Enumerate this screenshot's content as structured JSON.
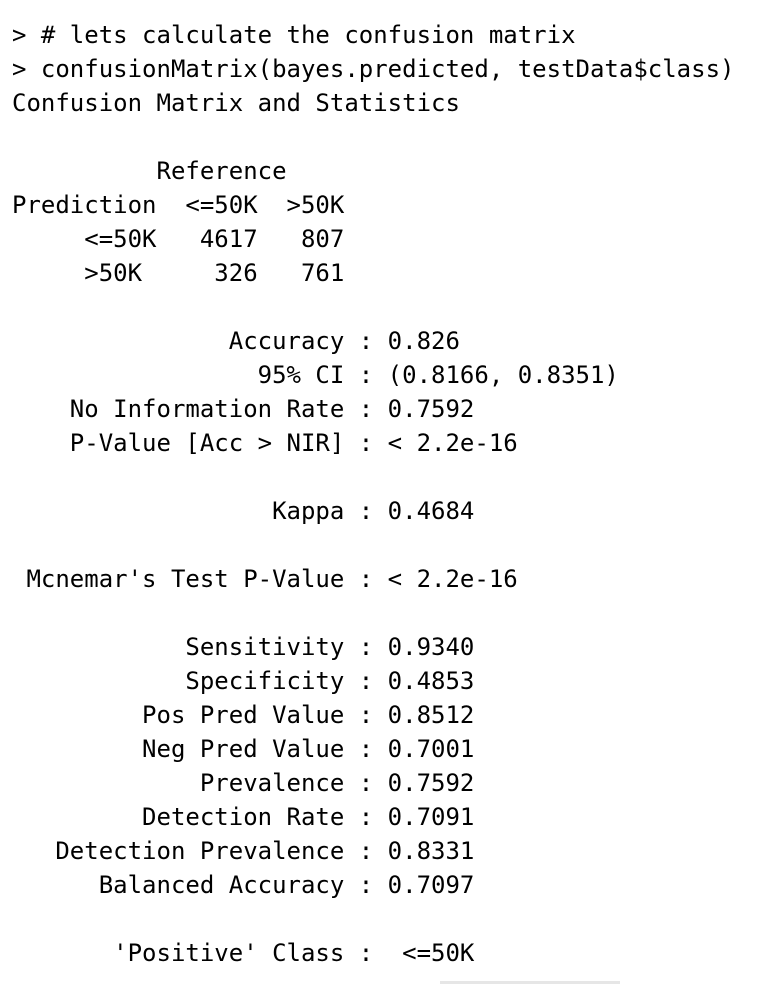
{
  "console": {
    "command_comment": "> # lets calculate the confusion matrix",
    "command_call": "> confusionMatrix(bayes.predicted, testData$class)",
    "output_title": "Confusion Matrix and Statistics",
    "matrix": {
      "reference_header": "          Reference",
      "column_header": "Prediction  <=50K  >50K",
      "row_1": "     <=50K   4617   807",
      "row_2": "     >50K     326   761"
    },
    "overall_stats": {
      "accuracy": "               Accuracy : 0.826",
      "ci": "                 95% CI : (0.8166, 0.8351)",
      "nir": "    No Information Rate : 0.7592",
      "p_value": "    P-Value [Acc > NIR] : < 2.2e-16",
      "kappa": "                  Kappa : 0.4684",
      "mcnemar": " Mcnemar's Test P-Value : < 2.2e-16"
    },
    "class_stats": {
      "sensitivity": "            Sensitivity : 0.9340",
      "specificity": "            Specificity : 0.4853",
      "pos_pred": "         Pos Pred Value : 0.8512",
      "neg_pred": "         Neg Pred Value : 0.7001",
      "prevalence": "             Prevalence : 0.7592",
      "detection_rate": "         Detection Rate : 0.7091",
      "detection_prevalence": "   Detection Prevalence : 0.8331",
      "balanced_accuracy": "      Balanced Accuracy : 0.7097",
      "positive_class": "       'Positive' Class :  <=50K"
    }
  }
}
